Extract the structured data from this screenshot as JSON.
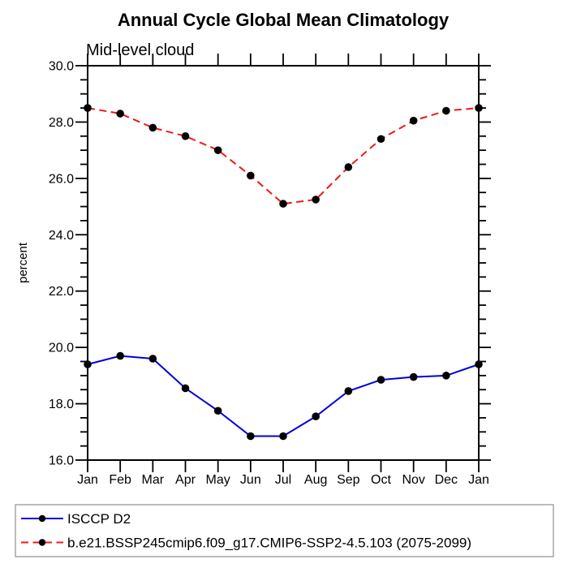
{
  "page": {
    "background_color": "#ffffff",
    "text_color": "#000000",
    "axis_color": "#000000"
  },
  "chart_data": {
    "type": "line",
    "title": "Annual Cycle Global Mean Climatology",
    "subtitle": "Mid-level cloud",
    "xlabel": "",
    "ylabel": "percent",
    "categories": [
      "Jan",
      "Feb",
      "Mar",
      "Apr",
      "May",
      "Jun",
      "Jul",
      "Aug",
      "Sep",
      "Oct",
      "Nov",
      "Dec",
      "Jan"
    ],
    "ylim": [
      16.0,
      30.0
    ],
    "ytick_step": 2,
    "ytick_minor_step": 0.5,
    "ytick_decimals": 1,
    "grid": false,
    "legend_position": "bottom",
    "legend_border_color": "#a6a6a6",
    "marker_color": "#000000",
    "series": [
      {
        "name": "ISCCP D2",
        "color": "#0000dd",
        "line_style": "solid",
        "marker": "circle",
        "values": [
          19.4,
          19.7,
          19.6,
          18.55,
          17.75,
          16.85,
          16.85,
          17.55,
          18.45,
          18.85,
          18.95,
          19.0,
          19.4
        ]
      },
      {
        "name": "b.e21.BSSP245cmip6.f09_g17.CMIP6-SSP2-4.5.103 (2075-2099)",
        "color": "#f01818",
        "line_style": "dashed",
        "marker": "circle",
        "values": [
          28.5,
          28.3,
          27.8,
          27.5,
          27.0,
          26.1,
          25.1,
          25.25,
          26.4,
          27.4,
          28.05,
          28.4,
          28.5
        ]
      }
    ]
  }
}
